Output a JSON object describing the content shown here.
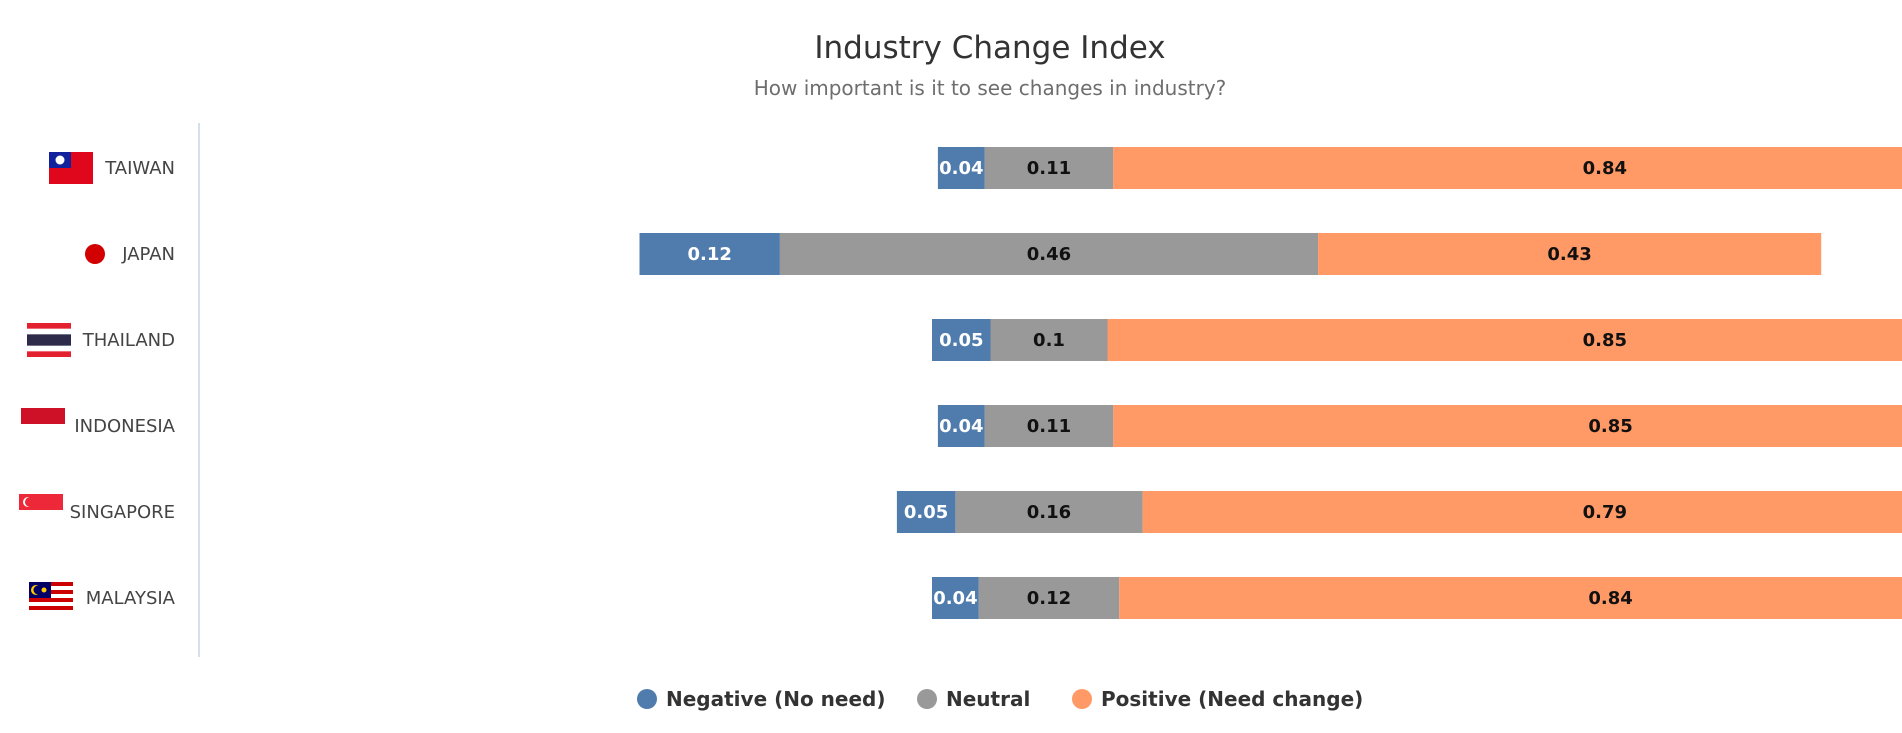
{
  "chart_data": {
    "type": "bar",
    "orientation": "horizontal",
    "stacked": true,
    "title": "Industry Change Index",
    "subtitle": "How important is it to see changes in industry?",
    "categories": [
      "TAIWAN",
      "JAPAN",
      "THAILAND",
      "INDONESIA",
      "SINGAPORE",
      "MALAYSIA"
    ],
    "flags": [
      "taiwan-flag-icon",
      "japan-flag-icon",
      "thailand-flag-icon",
      "indonesia-flag-icon",
      "singapore-flag-icon",
      "malaysia-flag-icon"
    ],
    "series": [
      {
        "name": "Negative (No need)",
        "color": "#4f7cac",
        "label_color": "#ffffff",
        "values": [
          0.04,
          0.12,
          0.05,
          0.04,
          0.05,
          0.04
        ]
      },
      {
        "name": "Neutral",
        "color": "#999999",
        "label_color": "#111111",
        "values": [
          0.11,
          0.46,
          0.1,
          0.11,
          0.16,
          0.12
        ]
      },
      {
        "name": "Positive (Need change)",
        "color": "#ff9966",
        "label_color": "#111111",
        "values": [
          0.84,
          0.43,
          0.85,
          0.85,
          0.79,
          0.84
        ]
      }
    ],
    "legend_position": "bottom-center",
    "grid": false,
    "xlabel": "",
    "ylabel": ""
  }
}
